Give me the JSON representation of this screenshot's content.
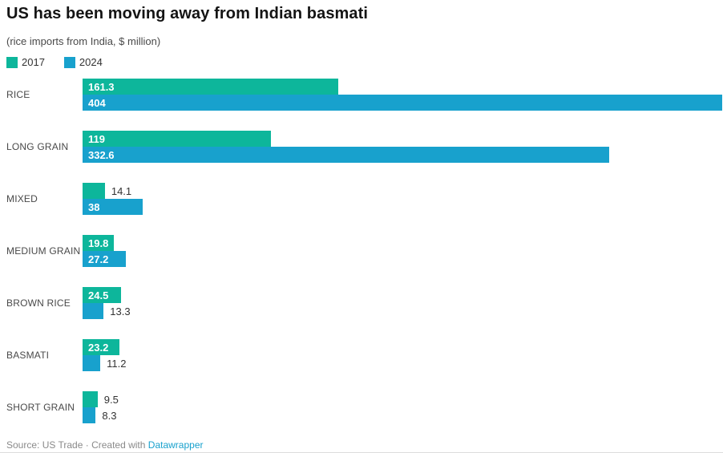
{
  "header": {
    "title": "US has been moving away from Indian basmati",
    "subtitle": "(rice imports from India, $ million)"
  },
  "legend": {
    "items": [
      {
        "label": "2017",
        "color": "#0db69b"
      },
      {
        "label": "2024",
        "color": "#18a1cd"
      }
    ]
  },
  "footer": {
    "source_text": "Source: US Trade",
    "separator": "·",
    "attribution_text": "Created with",
    "link_label": "Datawrapper",
    "link_color": "#18a1cd"
  },
  "chart_data": {
    "type": "bar",
    "orientation": "horizontal",
    "title": "US has been moving away from Indian basmati",
    "subtitle": "(rice imports from India, $ million)",
    "categories": [
      "RICE",
      "LONG GRAIN",
      "MIXED",
      "MEDIUM GRAIN",
      "BROWN RICE",
      "BASMATI",
      "SHORT GRAIN"
    ],
    "series": [
      {
        "name": "2017",
        "color": "#0db69b",
        "values": [
          161.3,
          119,
          14.1,
          19.8,
          24.5,
          23.2,
          9.5
        ]
      },
      {
        "name": "2024",
        "color": "#18a1cd",
        "values": [
          404,
          332.6,
          38,
          27.2,
          13.3,
          11.2,
          8.3
        ]
      }
    ],
    "xlim": [
      0,
      404
    ],
    "grid": false,
    "value_labels": true,
    "legend_position": "top-left",
    "source": "US Trade",
    "attribution": "Created with Datawrapper"
  }
}
